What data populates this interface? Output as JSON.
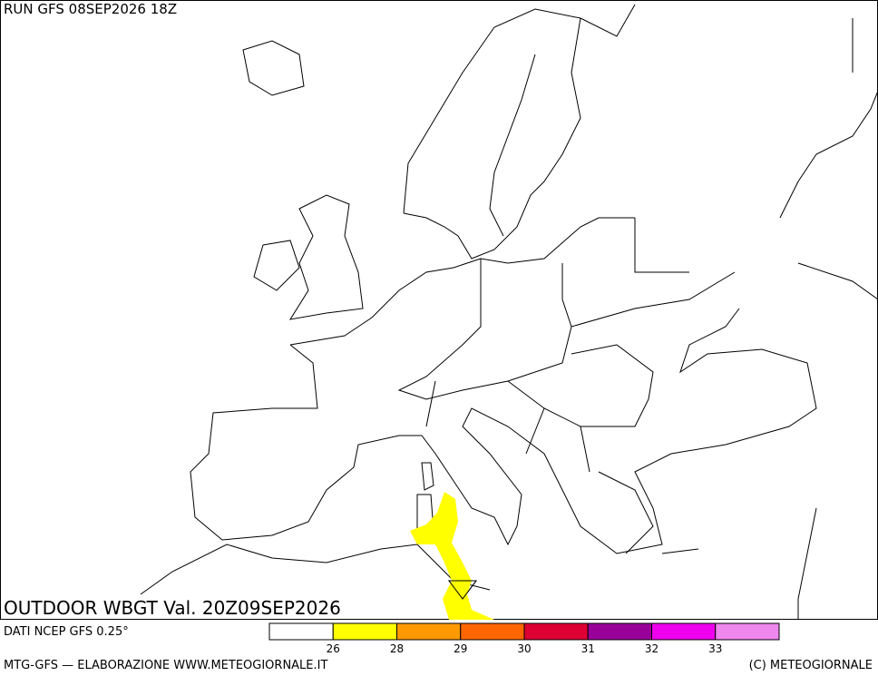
{
  "header": {
    "run": "RUN GFS 08SEP2026 18Z"
  },
  "map": {
    "title": "OUTDOOR WBGT Val. 20Z09SEP2026"
  },
  "footer": {
    "source": "DATI NCEP GFS 0.25°",
    "credit": "MTG-GFS — ELABORAZIONE WWW.METEOGIORNALE.IT",
    "copyright": "(C) METEOGIORNALE"
  },
  "legend": {
    "colors": [
      "#ffffff",
      "#ffff00",
      "#ff9900",
      "#ff6600",
      "#dd0033",
      "#990099",
      "#ee00ee",
      "#ee88ee"
    ],
    "labels": [
      26,
      28,
      29,
      30,
      31,
      32,
      33
    ]
  }
}
